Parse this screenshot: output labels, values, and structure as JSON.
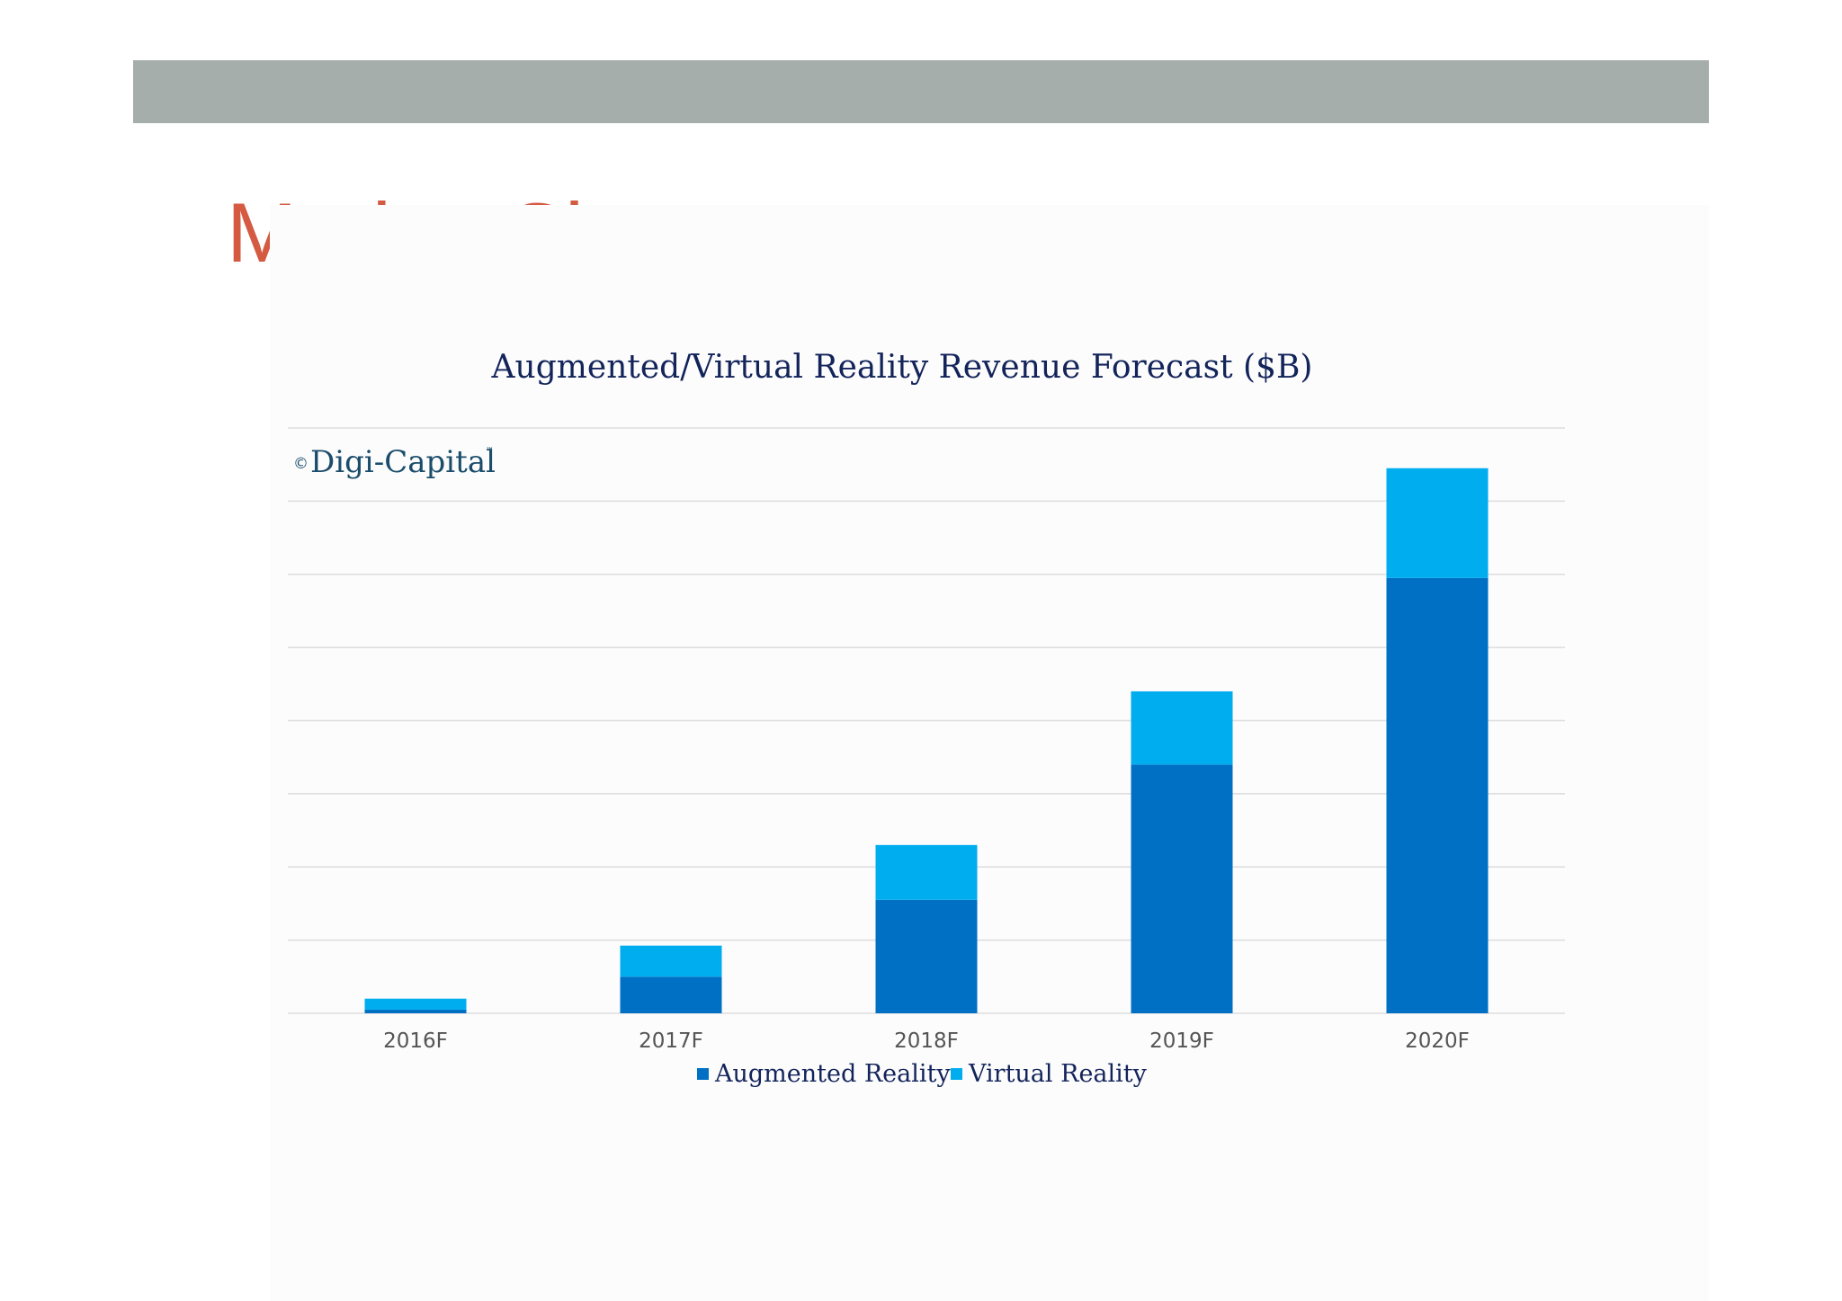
{
  "slide": {
    "title": "Market Size"
  },
  "colors": {
    "band": "#a5aeaa",
    "title": "#d45a42",
    "augmented_reality": "#0070c5",
    "virtual_reality": "#00adef",
    "gridline": "#dddddd",
    "chart_text": "#13245a"
  },
  "logo": {
    "mark": "©",
    "name": "Digi-Capital",
    "tm": "™"
  },
  "chart_data": {
    "type": "bar",
    "stacked": true,
    "title": "Augmented/Virtual Reality Revenue Forecast ($B)",
    "xlabel": "",
    "ylabel": "",
    "categories": [
      "2016F",
      "2017F",
      "2018F",
      "2019F",
      "2020F"
    ],
    "series": [
      {
        "name": "Augmented Reality",
        "color": "#0070c5",
        "values": [
          1,
          10,
          31,
          68,
          119
        ]
      },
      {
        "name": "Virtual Reality",
        "color": "#00adef",
        "values": [
          3,
          8.5,
          15,
          20,
          30
        ]
      }
    ],
    "ylim": [
      0,
      160
    ],
    "yticks": [
      "0",
      "20",
      "40",
      "60",
      "80",
      "100",
      "120",
      "140",
      "160"
    ],
    "grid": true,
    "legend_position": "bottom-center"
  }
}
